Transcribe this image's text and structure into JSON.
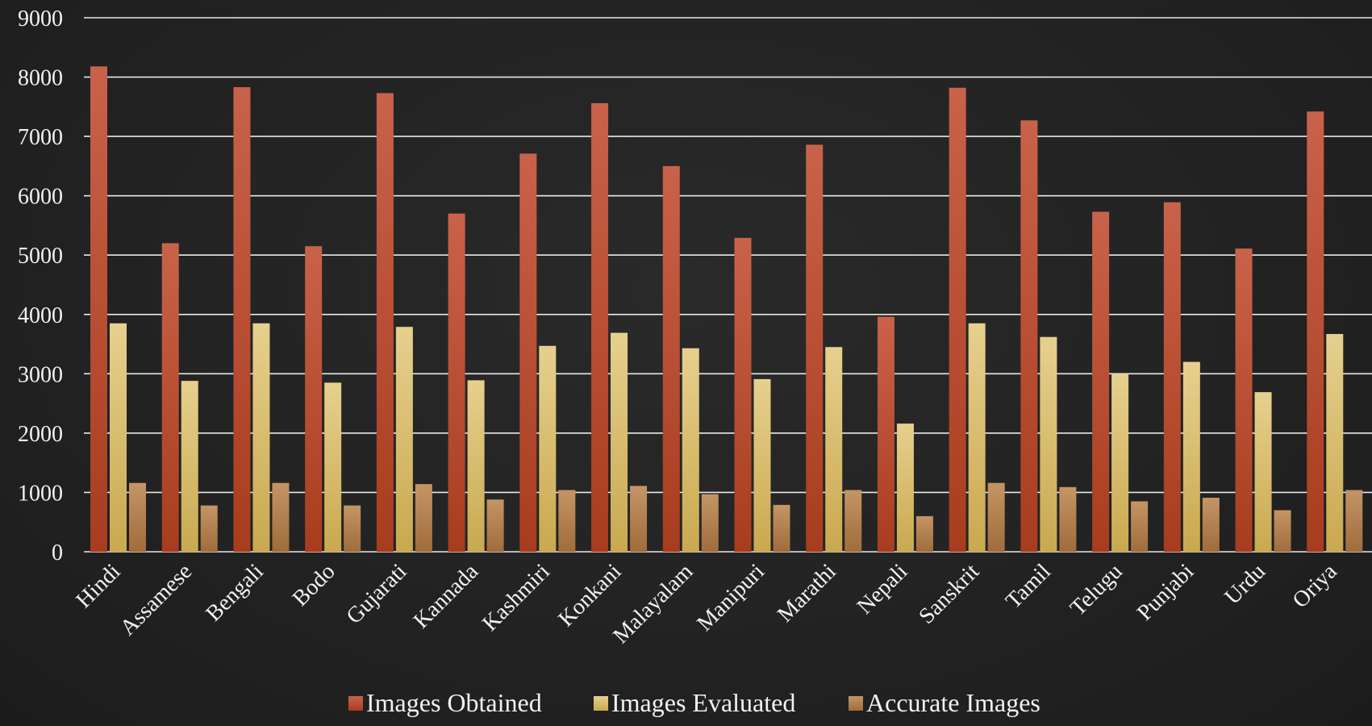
{
  "chart_data": {
    "type": "bar",
    "title": "",
    "xlabel": "",
    "ylabel": "",
    "ylim": [
      0,
      9000
    ],
    "yticks": [
      0,
      1000,
      2000,
      3000,
      4000,
      5000,
      6000,
      7000,
      8000,
      9000
    ],
    "grid": true,
    "legend_position": "bottom",
    "categories": [
      "Hindi",
      "Assamese",
      "Bengali",
      "Bodo",
      "Gujarati",
      "Kannada",
      "Kashmiri",
      "Konkani",
      "Malayalam",
      "Manipuri",
      "Marathi",
      "Nepali",
      "Sanskrit",
      "Tamil",
      "Telugu",
      "Punjabi",
      "Urdu",
      "Oriya"
    ],
    "series": [
      {
        "name": "Images Obtained",
        "color": "#c0543a",
        "values": [
          8180,
          5200,
          7830,
          5150,
          7730,
          5700,
          6710,
          7560,
          6500,
          5290,
          6860,
          3960,
          7820,
          7270,
          5730,
          5890,
          5110,
          7420
        ]
      },
      {
        "name": "Images Evaluated",
        "color": "#dcc178",
        "values": [
          3850,
          2880,
          3850,
          2850,
          3790,
          2890,
          3470,
          3690,
          3430,
          2910,
          3450,
          2160,
          3850,
          3620,
          3000,
          3200,
          2690,
          3670
        ]
      },
      {
        "name": "Accurate Images",
        "color": "#b88554",
        "values": [
          1160,
          780,
          1160,
          780,
          1140,
          880,
          1040,
          1110,
          970,
          790,
          1040,
          600,
          1160,
          1090,
          850,
          910,
          700,
          1040
        ]
      }
    ]
  }
}
